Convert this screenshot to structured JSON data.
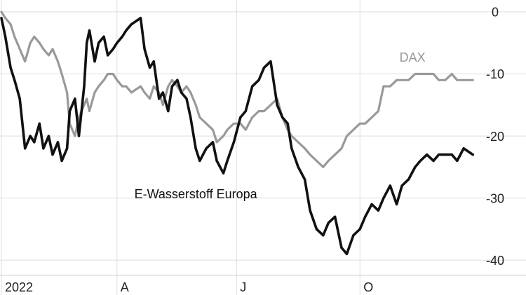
{
  "chart_data": {
    "type": "line",
    "title": "",
    "xlabel": "",
    "ylabel": "",
    "y_unit": "%",
    "ylim": [
      -42,
      1
    ],
    "xlim": [
      "2022-01-03",
      "2022-12-30"
    ],
    "y_ticks": [
      0,
      -10,
      -20,
      -30,
      -40
    ],
    "y_tick_labels": [
      "0",
      "-10",
      "-20",
      "-30",
      "-40"
    ],
    "x_ticks": [
      "2022-01-03",
      "2022-04-01",
      "2022-07-01",
      "2022-10-03"
    ],
    "x_tick_labels": [
      "2022",
      "A",
      "J",
      "O"
    ],
    "grid": {
      "horizontal": true,
      "vertical": true
    },
    "series": [
      {
        "name": "E-Wasserstoff Europa",
        "color": "#111111",
        "x": [
          "2022-01-03",
          "2022-01-06",
          "2022-01-10",
          "2022-01-13",
          "2022-01-17",
          "2022-01-21",
          "2022-01-25",
          "2022-01-28",
          "2022-02-01",
          "2022-02-04",
          "2022-02-08",
          "2022-02-11",
          "2022-02-15",
          "2022-02-18",
          "2022-02-22",
          "2022-02-24",
          "2022-02-28",
          "2022-03-03",
          "2022-03-07",
          "2022-03-09",
          "2022-03-11",
          "2022-03-15",
          "2022-03-18",
          "2022-03-22",
          "2022-03-25",
          "2022-03-29",
          "2022-04-01",
          "2022-04-05",
          "2022-04-08",
          "2022-04-12",
          "2022-04-19",
          "2022-04-22",
          "2022-04-26",
          "2022-04-29",
          "2022-05-03",
          "2022-05-06",
          "2022-05-10",
          "2022-05-13",
          "2022-05-17",
          "2022-05-20",
          "2022-05-24",
          "2022-05-27",
          "2022-05-31",
          "2022-06-03",
          "2022-06-08",
          "2022-06-13",
          "2022-06-16",
          "2022-06-21",
          "2022-06-24",
          "2022-06-29",
          "2022-07-04",
          "2022-07-08",
          "2022-07-13",
          "2022-07-18",
          "2022-07-22",
          "2022-07-27",
          "2022-08-01",
          "2022-08-05",
          "2022-08-09",
          "2022-08-12",
          "2022-08-17",
          "2022-08-22",
          "2022-08-26",
          "2022-08-31",
          "2022-09-05",
          "2022-09-09",
          "2022-09-14",
          "2022-09-19",
          "2022-09-23",
          "2022-09-28",
          "2022-10-03",
          "2022-10-07",
          "2022-10-12",
          "2022-10-17",
          "2022-10-21",
          "2022-10-26",
          "2022-10-31",
          "2022-11-04",
          "2022-11-09",
          "2022-11-14",
          "2022-11-18",
          "2022-11-23",
          "2022-11-28",
          "2022-12-02",
          "2022-12-07",
          "2022-12-12",
          "2022-12-16",
          "2022-12-21",
          "2022-12-28"
        ],
        "values": [
          -1,
          -4,
          -9,
          -11,
          -14,
          -22,
          -20,
          -21,
          -18,
          -22,
          -20,
          -23,
          -21,
          -24,
          -22,
          -16,
          -14,
          -20,
          -12,
          -5,
          -3,
          -8,
          -5,
          -4,
          -7,
          -6,
          -5,
          -4,
          -3,
          -2,
          -1,
          -6,
          -9,
          -8,
          -14,
          -13,
          -16,
          -12,
          -11,
          -13,
          -14,
          -17,
          -22,
          -24,
          -22,
          -21,
          -24,
          -26,
          -24,
          -21,
          -17,
          -16,
          -12,
          -11,
          -9,
          -8,
          -15,
          -17,
          -18,
          -22,
          -25,
          -27,
          -32,
          -35,
          -36,
          -34,
          -33,
          -38,
          -39,
          -36,
          -35,
          -33,
          -31,
          -32,
          -30,
          -28,
          -31,
          -28,
          -27,
          -25,
          -24,
          -23,
          -24,
          -23,
          -23,
          -23,
          -24,
          -22,
          -23
        ]
      },
      {
        "name": "DAX",
        "color": "#999999",
        "x": [
          "2022-01-03",
          "2022-01-06",
          "2022-01-10",
          "2022-01-13",
          "2022-01-17",
          "2022-01-21",
          "2022-01-25",
          "2022-01-28",
          "2022-02-01",
          "2022-02-04",
          "2022-02-08",
          "2022-02-11",
          "2022-02-15",
          "2022-02-18",
          "2022-02-22",
          "2022-02-24",
          "2022-02-28",
          "2022-03-03",
          "2022-03-07",
          "2022-03-09",
          "2022-03-11",
          "2022-03-15",
          "2022-03-18",
          "2022-03-22",
          "2022-03-25",
          "2022-03-29",
          "2022-04-01",
          "2022-04-05",
          "2022-04-08",
          "2022-04-12",
          "2022-04-19",
          "2022-04-22",
          "2022-04-26",
          "2022-04-29",
          "2022-05-03",
          "2022-05-06",
          "2022-05-10",
          "2022-05-13",
          "2022-05-17",
          "2022-05-20",
          "2022-05-24",
          "2022-05-27",
          "2022-05-31",
          "2022-06-03",
          "2022-06-08",
          "2022-06-13",
          "2022-06-16",
          "2022-06-21",
          "2022-06-24",
          "2022-06-29",
          "2022-07-04",
          "2022-07-08",
          "2022-07-13",
          "2022-07-18",
          "2022-07-22",
          "2022-07-27",
          "2022-08-01",
          "2022-08-05",
          "2022-08-09",
          "2022-08-12",
          "2022-08-17",
          "2022-08-22",
          "2022-08-26",
          "2022-08-31",
          "2022-09-05",
          "2022-09-09",
          "2022-09-14",
          "2022-09-19",
          "2022-09-23",
          "2022-09-28",
          "2022-10-03",
          "2022-10-07",
          "2022-10-12",
          "2022-10-17",
          "2022-10-21",
          "2022-10-26",
          "2022-10-31",
          "2022-11-04",
          "2022-11-09",
          "2022-11-14",
          "2022-11-18",
          "2022-11-23",
          "2022-11-28",
          "2022-12-02",
          "2022-12-07",
          "2022-12-12",
          "2022-12-16",
          "2022-12-21",
          "2022-12-28"
        ],
        "values": [
          0,
          -1,
          -2,
          -4,
          -6,
          -8,
          -5,
          -4,
          -5,
          -6,
          -7,
          -6,
          -8,
          -10,
          -13,
          -18,
          -20,
          -17,
          -15,
          -14,
          -16,
          -13,
          -12,
          -11,
          -10,
          -10,
          -11,
          -12,
          -12,
          -13,
          -12,
          -13,
          -14,
          -12,
          -13,
          -15,
          -12,
          -11,
          -12,
          -13,
          -12,
          -13,
          -15,
          -17,
          -18,
          -19,
          -21,
          -20,
          -19,
          -18,
          -18,
          -19,
          -17,
          -16,
          -16,
          -15,
          -14,
          -17,
          -19,
          -20,
          -21,
          -22,
          -23,
          -24,
          -25,
          -24,
          -23,
          -22,
          -20,
          -19,
          -18,
          -18,
          -17,
          -16,
          -12,
          -12,
          -11,
          -11,
          -11,
          -10,
          -10,
          -10,
          -10,
          -11,
          -11,
          -10,
          -11,
          -11,
          -11
        ]
      }
    ],
    "annotations": [
      {
        "series": "E-Wasserstoff Europa",
        "text": "E-Wasserstoff Europa",
        "at_x": "2022-05-31",
        "at_y": -29.5
      },
      {
        "series": "DAX",
        "text": "DAX",
        "at_x": "2022-11-12",
        "at_y": -7.5
      }
    ]
  }
}
